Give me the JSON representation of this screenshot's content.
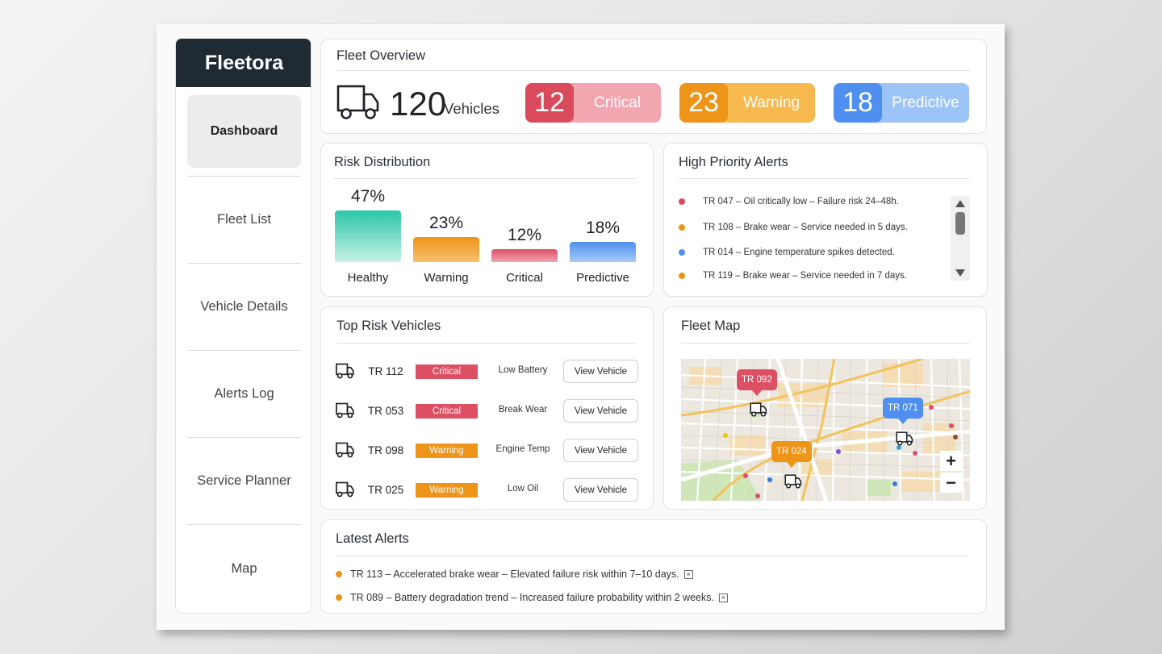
{
  "app": {
    "brand": "Fleetora"
  },
  "sidebar": {
    "items": [
      {
        "label": "Dashboard",
        "active": true
      },
      {
        "label": "Fleet List"
      },
      {
        "label": "Vehicle Details"
      },
      {
        "label": "Alerts Log"
      },
      {
        "label": "Service Planner"
      },
      {
        "label": "Map"
      }
    ]
  },
  "overview": {
    "title": "Fleet Overview",
    "vehicle_count": "120",
    "vehicle_label": "Vehicles",
    "stats": [
      {
        "value": "12",
        "label": "Critical",
        "color": "#d94a5c",
        "light": "#f2a6b0"
      },
      {
        "value": "23",
        "label": "Warning",
        "color": "#ee9419",
        "light": "#f7b94d"
      },
      {
        "value": "18",
        "label": "Predictive",
        "color": "#4f8ff0",
        "light": "#9cc4f7"
      }
    ]
  },
  "risk_distribution": {
    "title": "Risk Distribution",
    "labels": [
      "47%",
      "23%",
      "12%",
      "18%"
    ]
  },
  "chart_data": {
    "type": "bar",
    "title": "Risk Distribution",
    "categories": [
      "Healthy",
      "Warning",
      "Critical",
      "Predictive"
    ],
    "values": [
      47,
      23,
      12,
      18
    ],
    "colors": [
      "#2bc7a8",
      "#ee9419",
      "#dd4f63",
      "#4f8ff0"
    ],
    "ylim": [
      0,
      47
    ]
  },
  "high_priority_alerts": {
    "title": "High Priority Alerts",
    "items": [
      {
        "text": "TR 047 – Oil critically low – Failure risk 24–48h.",
        "color": "#d94a5c"
      },
      {
        "text": "TR 108 – Brake wear – Service needed in 5 days.",
        "color": "#ee9419"
      },
      {
        "text": "TR 014 – Engine temperature spikes detected.",
        "color": "#4f8ff0"
      },
      {
        "text": "TR 119 – Brake wear – Service needed in 7 days.",
        "color": "#ee9419"
      }
    ]
  },
  "top_risk_vehicles": {
    "title": "Top Risk Vehicles",
    "view_label": "View Vehicle",
    "rows": [
      {
        "id": "TR 112",
        "status": "Critical",
        "issue": "Low Battery",
        "color": "#dd4f63"
      },
      {
        "id": "TR 053",
        "status": "Critical",
        "issue": "Break Wear",
        "color": "#dd4f63"
      },
      {
        "id": "TR 098",
        "status": "Warning",
        "issue": "Engine Temp",
        "color": "#ee9419"
      },
      {
        "id": "TR 025",
        "status": "Warning",
        "issue": "Low Oil",
        "color": "#ee9419"
      }
    ]
  },
  "fleet_map": {
    "title": "Fleet Map",
    "pins": [
      {
        "label": "TR 092",
        "color": "#dd4f63"
      },
      {
        "label": "TR 071",
        "color": "#4f8ff0"
      },
      {
        "label": "TR 024",
        "color": "#ee9419"
      }
    ],
    "zoom_in": "+",
    "zoom_out": "−"
  },
  "latest_alerts": {
    "title": "Latest Alerts",
    "items": [
      {
        "text": "TR 113 – Accelerated brake wear – Elevated failure risk within 7–10 days.",
        "color": "#ee9419"
      },
      {
        "text": "TR 089 – Battery degradation trend – Increased failure probability within 2 weeks.",
        "color": "#ee9419"
      }
    ],
    "dismiss": "×"
  }
}
